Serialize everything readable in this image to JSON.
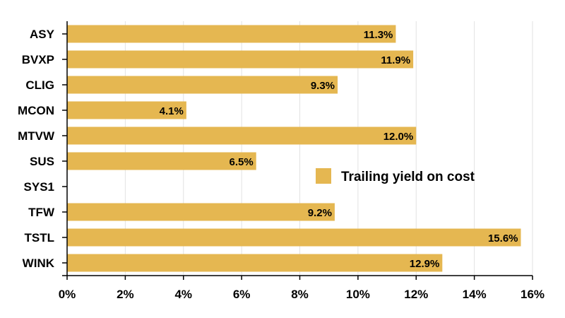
{
  "chart_data": {
    "type": "bar",
    "orientation": "horizontal",
    "categories": [
      "ASY",
      "BVXP",
      "CLIG",
      "MCON",
      "MTVW",
      "SUS",
      "SYS1",
      "TFW",
      "TSTL",
      "WINK"
    ],
    "series": [
      {
        "name": "Trailing yield on cost",
        "values": [
          11.3,
          11.9,
          9.3,
          4.1,
          12.0,
          6.5,
          null,
          9.2,
          15.6,
          12.9
        ],
        "data_labels": [
          "11.3%",
          "11.9%",
          "9.3%",
          "4.1%",
          "12.0%",
          "6.5%",
          "",
          "9.2%",
          "15.6%",
          "12.9%"
        ]
      }
    ],
    "x_ticks": [
      0,
      2,
      4,
      6,
      8,
      10,
      12,
      14,
      16
    ],
    "x_tick_labels": [
      "0%",
      "2%",
      "4%",
      "6%",
      "8%",
      "10%",
      "12%",
      "14%",
      "16%"
    ],
    "xlim": [
      0,
      16
    ],
    "grid": true,
    "legend_position": "center-right",
    "colors": {
      "bar": "#e5b751",
      "grid": "#e2e2e2",
      "axis": "#000000"
    }
  }
}
